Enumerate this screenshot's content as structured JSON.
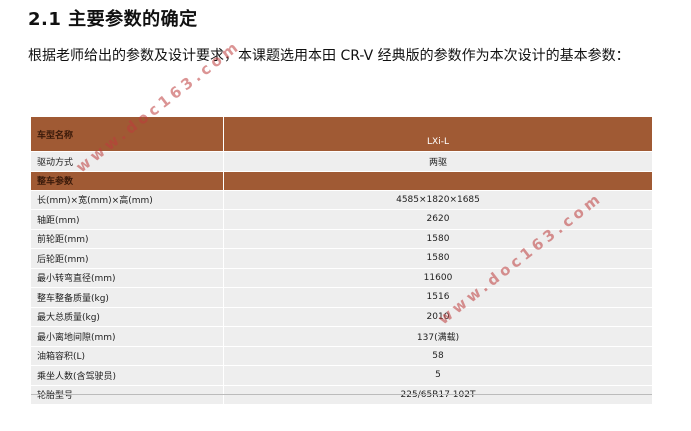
{
  "heading": "2.1 主要参数的确定",
  "paragraph": "根据老师给出的参数及设计要求，本课题选用本田 CR-V 经典版的参数作为本次设计的基本参数：",
  "table": {
    "model_header_label": "车型名称",
    "model_header_value": "LXi-L",
    "drive_label": "驱动方式",
    "drive_value": "两驱",
    "section_label": "整车参数",
    "rows": [
      {
        "label": "长(mm)×宽(mm)×高(mm)",
        "value": "4585×1820×1685"
      },
      {
        "label": "轴距(mm)",
        "value": "2620"
      },
      {
        "label": "前轮距(mm)",
        "value": "1580"
      },
      {
        "label": "后轮距(mm)",
        "value": "1580"
      },
      {
        "label": "最小转弯直径(mm)",
        "value": "11600"
      },
      {
        "label": "整车整备质量(kg)",
        "value": "1516"
      },
      {
        "label": "最大总质量(kg)",
        "value": "2010"
      },
      {
        "label": "最小离地间隙(mm)",
        "value": "137(满载)"
      },
      {
        "label": "油箱容积(L)",
        "value": "58"
      },
      {
        "label": "乘坐人数(含驾驶员)",
        "value": "5"
      },
      {
        "label": "轮胎型号",
        "value": "225/65R17 102T"
      }
    ]
  },
  "watermark": "www.doc163.com"
}
